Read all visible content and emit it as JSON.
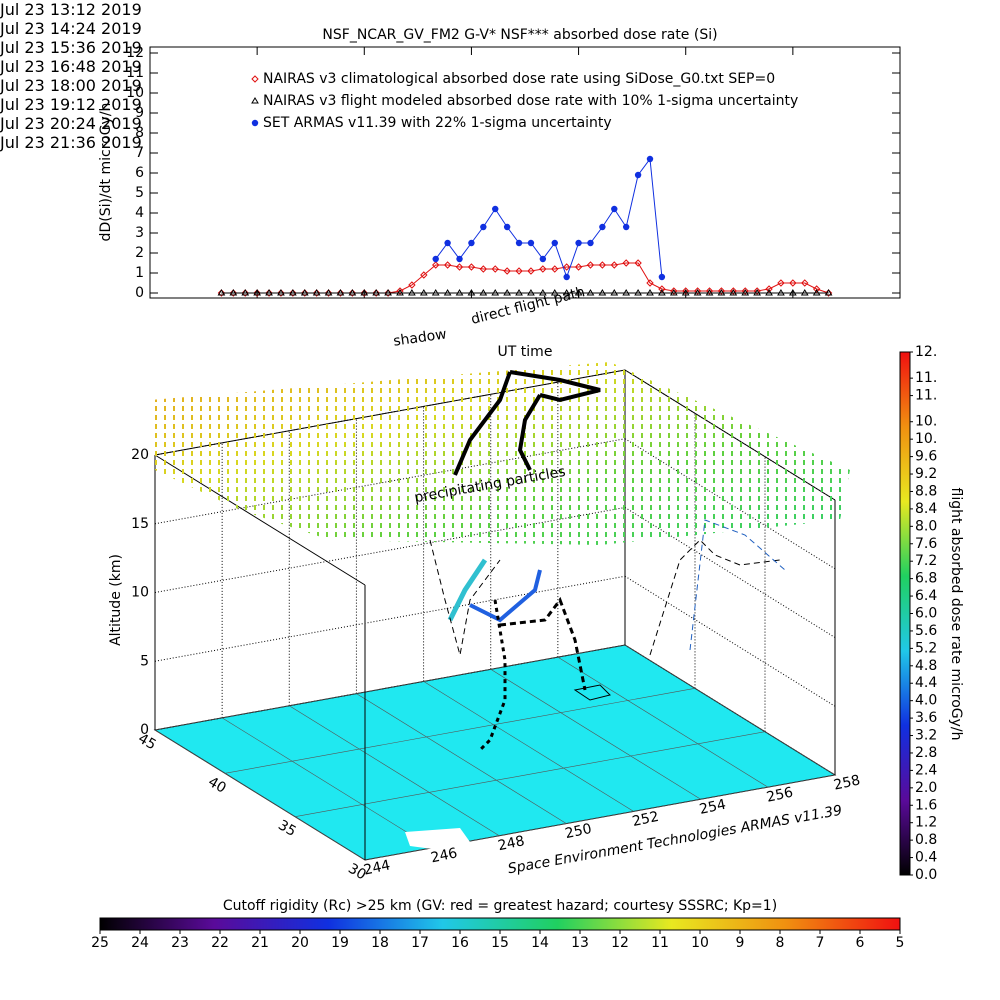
{
  "chart_data": [
    {
      "type": "line",
      "title": "NSF_NCAR_GV_FM2 G-V* NSF*** absorbed dose rate (Si)",
      "xlabel": "UT time",
      "ylabel": "dD(Si)/dt microGy/h",
      "x": [
        "2019-07-23 14:00",
        "2019-07-23 14:08",
        "2019-07-23 14:16",
        "2019-07-23 14:24",
        "2019-07-23 14:32",
        "2019-07-23 14:40",
        "2019-07-23 14:48",
        "2019-07-23 14:56",
        "2019-07-23 15:04",
        "2019-07-23 15:12",
        "2019-07-23 15:20",
        "2019-07-23 15:28",
        "2019-07-23 15:36",
        "2019-07-23 15:44",
        "2019-07-23 15:52",
        "2019-07-23 16:00",
        "2019-07-23 16:08",
        "2019-07-23 16:16",
        "2019-07-23 16:24",
        "2019-07-23 16:32",
        "2019-07-23 16:40",
        "2019-07-23 16:48",
        "2019-07-23 16:56",
        "2019-07-23 17:04",
        "2019-07-23 17:12",
        "2019-07-23 17:20",
        "2019-07-23 17:28",
        "2019-07-23 17:36",
        "2019-07-23 17:44",
        "2019-07-23 17:52",
        "2019-07-23 18:00",
        "2019-07-23 18:08",
        "2019-07-23 18:16",
        "2019-07-23 18:24",
        "2019-07-23 18:32",
        "2019-07-23 18:40",
        "2019-07-23 18:48",
        "2019-07-23 18:56",
        "2019-07-23 19:04",
        "2019-07-23 19:12",
        "2019-07-23 19:20",
        "2019-07-23 19:28",
        "2019-07-23 19:36",
        "2019-07-23 19:44",
        "2019-07-23 19:52",
        "2019-07-23 20:00",
        "2019-07-23 20:08",
        "2019-07-23 20:16",
        "2019-07-23 20:24",
        "2019-07-23 20:32",
        "2019-07-23 20:40",
        "2019-07-23 20:48"
      ],
      "xlim": [
        "2019-07-23 13:12",
        "2019-07-23 21:36"
      ],
      "xticks": [
        {
          "value": "2019-07-23 13:12",
          "label": "Jul 23\n13:12 2019"
        },
        {
          "value": "2019-07-23 14:24",
          "label": "Jul 23\n14:24 2019"
        },
        {
          "value": "2019-07-23 15:36",
          "label": "Jul 23\n15:36 2019"
        },
        {
          "value": "2019-07-23 16:48",
          "label": "Jul 23\n16:48 2019"
        },
        {
          "value": "2019-07-23 18:00",
          "label": "Jul 23\n18:00 2019"
        },
        {
          "value": "2019-07-23 19:12",
          "label": "Jul 23\n19:12 2019"
        },
        {
          "value": "2019-07-23 20:24",
          "label": "Jul 23\n20:24 2019"
        },
        {
          "value": "2019-07-23 21:36",
          "label": "Jul 23\n21:36 2019"
        }
      ],
      "ylim": [
        -0.25,
        12.3
      ],
      "yticks": [
        0,
        1,
        2,
        3,
        4,
        5,
        6,
        7,
        8,
        9,
        10,
        11,
        12
      ],
      "series": [
        {
          "name": "NAIRAS v3 climatological absorbed dose rate using SiDose_G0.txt SEP=0",
          "color": "#e01010",
          "marker": "diamond",
          "values": [
            0,
            0,
            0,
            0,
            0,
            0,
            0,
            0,
            0,
            0,
            0,
            0,
            0,
            0,
            0,
            0.1,
            0.4,
            0.9,
            1.4,
            1.4,
            1.3,
            1.3,
            1.2,
            1.2,
            1.1,
            1.1,
            1.1,
            1.2,
            1.2,
            1.3,
            1.3,
            1.4,
            1.4,
            1.4,
            1.5,
            1.5,
            0.5,
            0.2,
            0.1,
            0.1,
            0.1,
            0.1,
            0.1,
            0.1,
            0.1,
            0.1,
            0.2,
            0.5,
            0.5,
            0.5,
            0.2,
            0
          ]
        },
        {
          "name": "NAIRAS v3 flight modeled absorbed dose rate with 10% 1-sigma uncertainty",
          "color": "#000000",
          "marker": "triangle",
          "values": [
            0,
            0,
            0,
            0,
            0,
            0,
            0,
            0,
            0,
            0,
            0,
            0,
            0,
            0,
            0,
            0,
            0,
            0,
            0,
            0,
            0,
            0,
            0,
            0,
            0,
            0,
            0,
            0,
            0,
            0,
            0,
            0,
            0,
            0,
            0,
            0,
            0,
            0,
            0,
            0,
            0,
            0,
            0,
            0,
            0,
            0,
            0,
            0,
            0,
            0,
            0,
            0
          ]
        },
        {
          "name": "SET ARMAS v11.39 with 22% 1-sigma uncertainty",
          "color": "#1030e0",
          "marker": "circle",
          "values": [
            null,
            null,
            null,
            null,
            null,
            null,
            null,
            null,
            null,
            null,
            null,
            null,
            null,
            null,
            null,
            null,
            null,
            null,
            1.7,
            2.5,
            1.7,
            2.5,
            3.3,
            4.2,
            3.3,
            2.5,
            2.5,
            1.7,
            2.5,
            0.8,
            2.5,
            2.5,
            3.3,
            4.2,
            3.3,
            5.9,
            6.7,
            0.8,
            null,
            null,
            null,
            null,
            null,
            null,
            null,
            null,
            null,
            null,
            null,
            null,
            null,
            null
          ]
        }
      ]
    },
    {
      "type": "surface3d",
      "zlabel": "Altitude (km)",
      "zlim": [
        0,
        20
      ],
      "zticks": [
        0,
        5,
        10,
        15,
        20
      ],
      "ylim": [
        30,
        45
      ],
      "yticks": [
        30,
        35,
        40,
        45
      ],
      "xlim": [
        244,
        258
      ],
      "xticks": [
        244,
        246,
        248,
        250,
        252,
        254,
        256,
        258
      ],
      "annotations": [
        "precipitating particles",
        "shadow",
        "direct flight path"
      ],
      "footer": "Space Environment Technologies ARMAS v11.39"
    },
    {
      "type": "colorbar",
      "orientation": "vertical",
      "label": "flight absorbed dose rate microGy/h",
      "lim": [
        0,
        12
      ],
      "colors": [
        "#000000",
        "#5a0a9a",
        "#1030e0",
        "#20c8e8",
        "#20d060",
        "#e8e820",
        "#f09010",
        "#f01010"
      ],
      "ticks": [
        {
          "value": 0,
          "label": "0.0"
        },
        0.4,
        0.8,
        1.2,
        1.6,
        {
          "value": 2,
          "label": "2.0"
        },
        2.4,
        2.8,
        3.2,
        3.6,
        {
          "value": 4,
          "label": "4.0"
        },
        4.4,
        4.8,
        5.2,
        5.6,
        {
          "value": 6,
          "label": "6.0"
        },
        6.4,
        6.8,
        7.2,
        7.6,
        {
          "value": 8,
          "label": "8.0"
        },
        8.4,
        8.8,
        9.2,
        9.6,
        {
          "value": 10,
          "label": "10."
        },
        {
          "value": 10.4,
          "label": "10."
        },
        {
          "value": 11,
          "label": "11."
        },
        {
          "value": 11.4,
          "label": "11."
        },
        {
          "value": 12,
          "label": "12."
        }
      ]
    },
    {
      "type": "colorbar",
      "orientation": "horizontal",
      "label": "Cutoff rigidity (Rc) >25 km (GV: red = greatest hazard; courtesy SSSRC; Kp=1)",
      "lim": [
        25,
        5
      ],
      "colors": [
        "#000000",
        "#5a0a9a",
        "#1030e0",
        "#20c8e8",
        "#20d060",
        "#e8e820",
        "#f09010",
        "#f01010"
      ],
      "ticks": [
        25,
        24,
        23,
        22,
        21,
        20,
        19,
        18,
        17,
        16,
        15,
        14,
        13,
        12,
        11,
        10,
        9,
        8,
        7,
        6,
        5
      ]
    }
  ]
}
